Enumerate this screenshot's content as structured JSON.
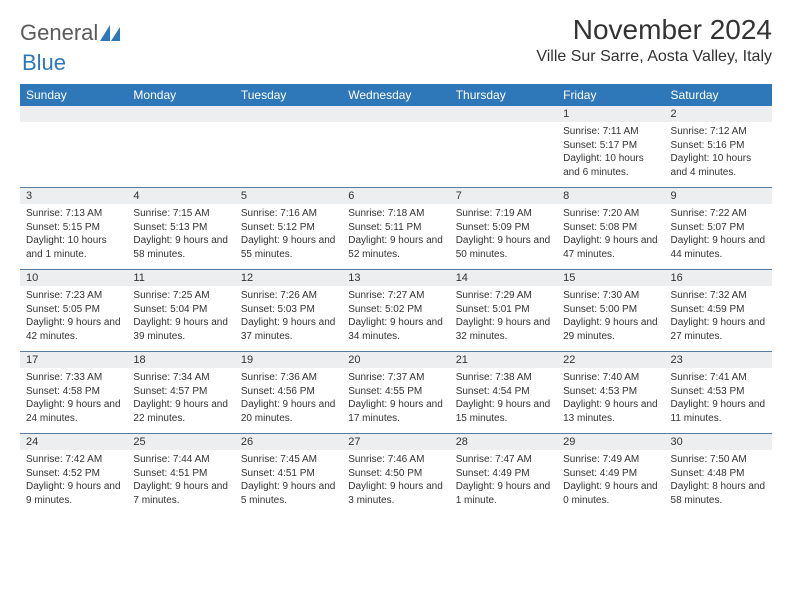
{
  "brand": {
    "part1": "General",
    "part2": "Blue"
  },
  "title": "November 2024",
  "location": "Ville Sur Sarre, Aosta Valley, Italy",
  "colors": {
    "header_bg": "#2e77b8",
    "header_text": "#ffffff",
    "daynum_bg": "#eceef0",
    "border": "#5a7ca0",
    "text": "#333333",
    "brand_gray": "#5a5a5a",
    "brand_blue": "#2e77b8",
    "page_bg": "#ffffff"
  },
  "dayHeaders": [
    "Sunday",
    "Monday",
    "Tuesday",
    "Wednesday",
    "Thursday",
    "Friday",
    "Saturday"
  ],
  "weeks": [
    [
      null,
      null,
      null,
      null,
      null,
      {
        "n": "1",
        "sr": "Sunrise: 7:11 AM",
        "ss": "Sunset: 5:17 PM",
        "dl": "Daylight: 10 hours and 6 minutes."
      },
      {
        "n": "2",
        "sr": "Sunrise: 7:12 AM",
        "ss": "Sunset: 5:16 PM",
        "dl": "Daylight: 10 hours and 4 minutes."
      }
    ],
    [
      {
        "n": "3",
        "sr": "Sunrise: 7:13 AM",
        "ss": "Sunset: 5:15 PM",
        "dl": "Daylight: 10 hours and 1 minute."
      },
      {
        "n": "4",
        "sr": "Sunrise: 7:15 AM",
        "ss": "Sunset: 5:13 PM",
        "dl": "Daylight: 9 hours and 58 minutes."
      },
      {
        "n": "5",
        "sr": "Sunrise: 7:16 AM",
        "ss": "Sunset: 5:12 PM",
        "dl": "Daylight: 9 hours and 55 minutes."
      },
      {
        "n": "6",
        "sr": "Sunrise: 7:18 AM",
        "ss": "Sunset: 5:11 PM",
        "dl": "Daylight: 9 hours and 52 minutes."
      },
      {
        "n": "7",
        "sr": "Sunrise: 7:19 AM",
        "ss": "Sunset: 5:09 PM",
        "dl": "Daylight: 9 hours and 50 minutes."
      },
      {
        "n": "8",
        "sr": "Sunrise: 7:20 AM",
        "ss": "Sunset: 5:08 PM",
        "dl": "Daylight: 9 hours and 47 minutes."
      },
      {
        "n": "9",
        "sr": "Sunrise: 7:22 AM",
        "ss": "Sunset: 5:07 PM",
        "dl": "Daylight: 9 hours and 44 minutes."
      }
    ],
    [
      {
        "n": "10",
        "sr": "Sunrise: 7:23 AM",
        "ss": "Sunset: 5:05 PM",
        "dl": "Daylight: 9 hours and 42 minutes."
      },
      {
        "n": "11",
        "sr": "Sunrise: 7:25 AM",
        "ss": "Sunset: 5:04 PM",
        "dl": "Daylight: 9 hours and 39 minutes."
      },
      {
        "n": "12",
        "sr": "Sunrise: 7:26 AM",
        "ss": "Sunset: 5:03 PM",
        "dl": "Daylight: 9 hours and 37 minutes."
      },
      {
        "n": "13",
        "sr": "Sunrise: 7:27 AM",
        "ss": "Sunset: 5:02 PM",
        "dl": "Daylight: 9 hours and 34 minutes."
      },
      {
        "n": "14",
        "sr": "Sunrise: 7:29 AM",
        "ss": "Sunset: 5:01 PM",
        "dl": "Daylight: 9 hours and 32 minutes."
      },
      {
        "n": "15",
        "sr": "Sunrise: 7:30 AM",
        "ss": "Sunset: 5:00 PM",
        "dl": "Daylight: 9 hours and 29 minutes."
      },
      {
        "n": "16",
        "sr": "Sunrise: 7:32 AM",
        "ss": "Sunset: 4:59 PM",
        "dl": "Daylight: 9 hours and 27 minutes."
      }
    ],
    [
      {
        "n": "17",
        "sr": "Sunrise: 7:33 AM",
        "ss": "Sunset: 4:58 PM",
        "dl": "Daylight: 9 hours and 24 minutes."
      },
      {
        "n": "18",
        "sr": "Sunrise: 7:34 AM",
        "ss": "Sunset: 4:57 PM",
        "dl": "Daylight: 9 hours and 22 minutes."
      },
      {
        "n": "19",
        "sr": "Sunrise: 7:36 AM",
        "ss": "Sunset: 4:56 PM",
        "dl": "Daylight: 9 hours and 20 minutes."
      },
      {
        "n": "20",
        "sr": "Sunrise: 7:37 AM",
        "ss": "Sunset: 4:55 PM",
        "dl": "Daylight: 9 hours and 17 minutes."
      },
      {
        "n": "21",
        "sr": "Sunrise: 7:38 AM",
        "ss": "Sunset: 4:54 PM",
        "dl": "Daylight: 9 hours and 15 minutes."
      },
      {
        "n": "22",
        "sr": "Sunrise: 7:40 AM",
        "ss": "Sunset: 4:53 PM",
        "dl": "Daylight: 9 hours and 13 minutes."
      },
      {
        "n": "23",
        "sr": "Sunrise: 7:41 AM",
        "ss": "Sunset: 4:53 PM",
        "dl": "Daylight: 9 hours and 11 minutes."
      }
    ],
    [
      {
        "n": "24",
        "sr": "Sunrise: 7:42 AM",
        "ss": "Sunset: 4:52 PM",
        "dl": "Daylight: 9 hours and 9 minutes."
      },
      {
        "n": "25",
        "sr": "Sunrise: 7:44 AM",
        "ss": "Sunset: 4:51 PM",
        "dl": "Daylight: 9 hours and 7 minutes."
      },
      {
        "n": "26",
        "sr": "Sunrise: 7:45 AM",
        "ss": "Sunset: 4:51 PM",
        "dl": "Daylight: 9 hours and 5 minutes."
      },
      {
        "n": "27",
        "sr": "Sunrise: 7:46 AM",
        "ss": "Sunset: 4:50 PM",
        "dl": "Daylight: 9 hours and 3 minutes."
      },
      {
        "n": "28",
        "sr": "Sunrise: 7:47 AM",
        "ss": "Sunset: 4:49 PM",
        "dl": "Daylight: 9 hours and 1 minute."
      },
      {
        "n": "29",
        "sr": "Sunrise: 7:49 AM",
        "ss": "Sunset: 4:49 PM",
        "dl": "Daylight: 9 hours and 0 minutes."
      },
      {
        "n": "30",
        "sr": "Sunrise: 7:50 AM",
        "ss": "Sunset: 4:48 PM",
        "dl": "Daylight: 8 hours and 58 minutes."
      }
    ]
  ]
}
